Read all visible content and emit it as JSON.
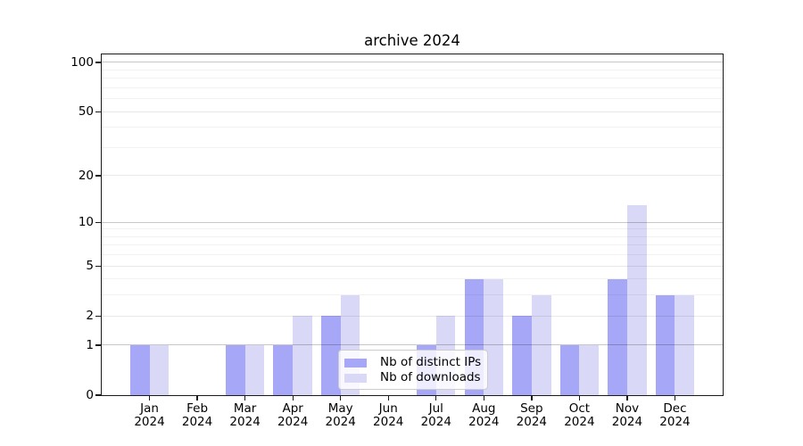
{
  "chart_data": {
    "type": "bar",
    "title": "archive 2024",
    "categories": [
      "Jan",
      "Feb",
      "Mar",
      "Apr",
      "May",
      "Jun",
      "Jul",
      "Aug",
      "Sep",
      "Oct",
      "Nov",
      "Dec"
    ],
    "category_year": "2024",
    "series": [
      {
        "name": "Nb of distinct IPs",
        "color": "#a7a7f8",
        "values": [
          1,
          0,
          1,
          1,
          2,
          0,
          1,
          4,
          2,
          1,
          4,
          3
        ]
      },
      {
        "name": "Nb of downloads",
        "color": "#d9d9f7",
        "values": [
          1,
          0,
          1,
          2,
          3,
          0,
          2,
          4,
          3,
          1,
          13,
          3
        ]
      }
    ],
    "xlabel": "",
    "ylabel": "",
    "yscale": "log1p",
    "ylim": [
      0,
      113
    ],
    "yticks": [
      0,
      1,
      2,
      5,
      10,
      20,
      50,
      100
    ],
    "major_gridlines": [
      1,
      10,
      100
    ],
    "medium_gridlines": [
      2,
      5,
      20,
      50
    ],
    "minor_gridlines": [
      3,
      4,
      6,
      7,
      8,
      9,
      30,
      40,
      60,
      70,
      80,
      90
    ],
    "grid": "on",
    "grid_above_bars": true,
    "legend_position": "lower center",
    "colors": {
      "grid_major": "rgba(0,0,0,0.22)",
      "grid_medium": "rgba(0,0,0,0.09)",
      "grid_minor": "rgba(0,0,0,0.05)",
      "spine": "#1a1a1a",
      "text": "#000000",
      "background": "#ffffff"
    }
  }
}
